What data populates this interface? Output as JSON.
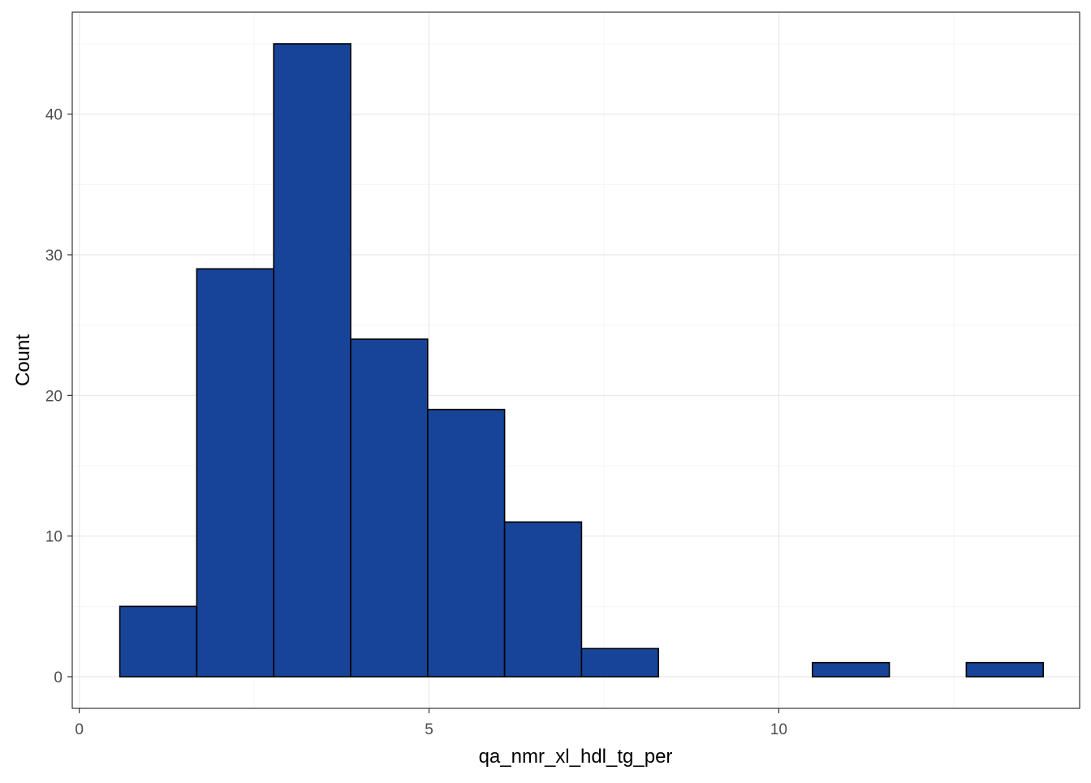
{
  "chart_data": {
    "type": "bar",
    "subtype": "histogram",
    "title": "",
    "xlabel": "qa_nmr_xl_hdl_tg_per",
    "ylabel": "Count",
    "xlim": [
      -0.1,
      14.3
    ],
    "ylim": [
      -2.25,
      47.25
    ],
    "x_ticks": [
      0,
      5,
      10
    ],
    "x_tick_labels": [
      "0",
      "5",
      "10"
    ],
    "y_ticks": [
      0,
      10,
      20,
      30,
      40
    ],
    "y_tick_labels": [
      "0",
      "10",
      "20",
      "30",
      "40"
    ],
    "bin_width": 1.1,
    "bins": [
      {
        "start": 0.58,
        "end": 1.68,
        "count": 5
      },
      {
        "start": 1.68,
        "end": 2.78,
        "count": 29
      },
      {
        "start": 2.78,
        "end": 3.88,
        "count": 45
      },
      {
        "start": 3.88,
        "end": 4.98,
        "count": 24
      },
      {
        "start": 4.98,
        "end": 6.08,
        "count": 19
      },
      {
        "start": 6.08,
        "end": 7.18,
        "count": 11
      },
      {
        "start": 7.18,
        "end": 8.28,
        "count": 2
      },
      {
        "start": 8.28,
        "end": 9.38,
        "count": 0
      },
      {
        "start": 9.38,
        "end": 10.48,
        "count": 0
      },
      {
        "start": 10.48,
        "end": 11.58,
        "count": 1
      },
      {
        "start": 11.58,
        "end": 12.68,
        "count": 0
      },
      {
        "start": 12.68,
        "end": 13.78,
        "count": 1
      }
    ],
    "grid": true,
    "legend": "none",
    "colors": {
      "bar_fill": "#174499",
      "bar_stroke": "#000000",
      "panel_border": "#333333",
      "grid_major": "#ebebeb",
      "grid_minor": "#f5f5f5",
      "tick_label": "#4d4d4d",
      "axis_title": "#000000"
    }
  }
}
